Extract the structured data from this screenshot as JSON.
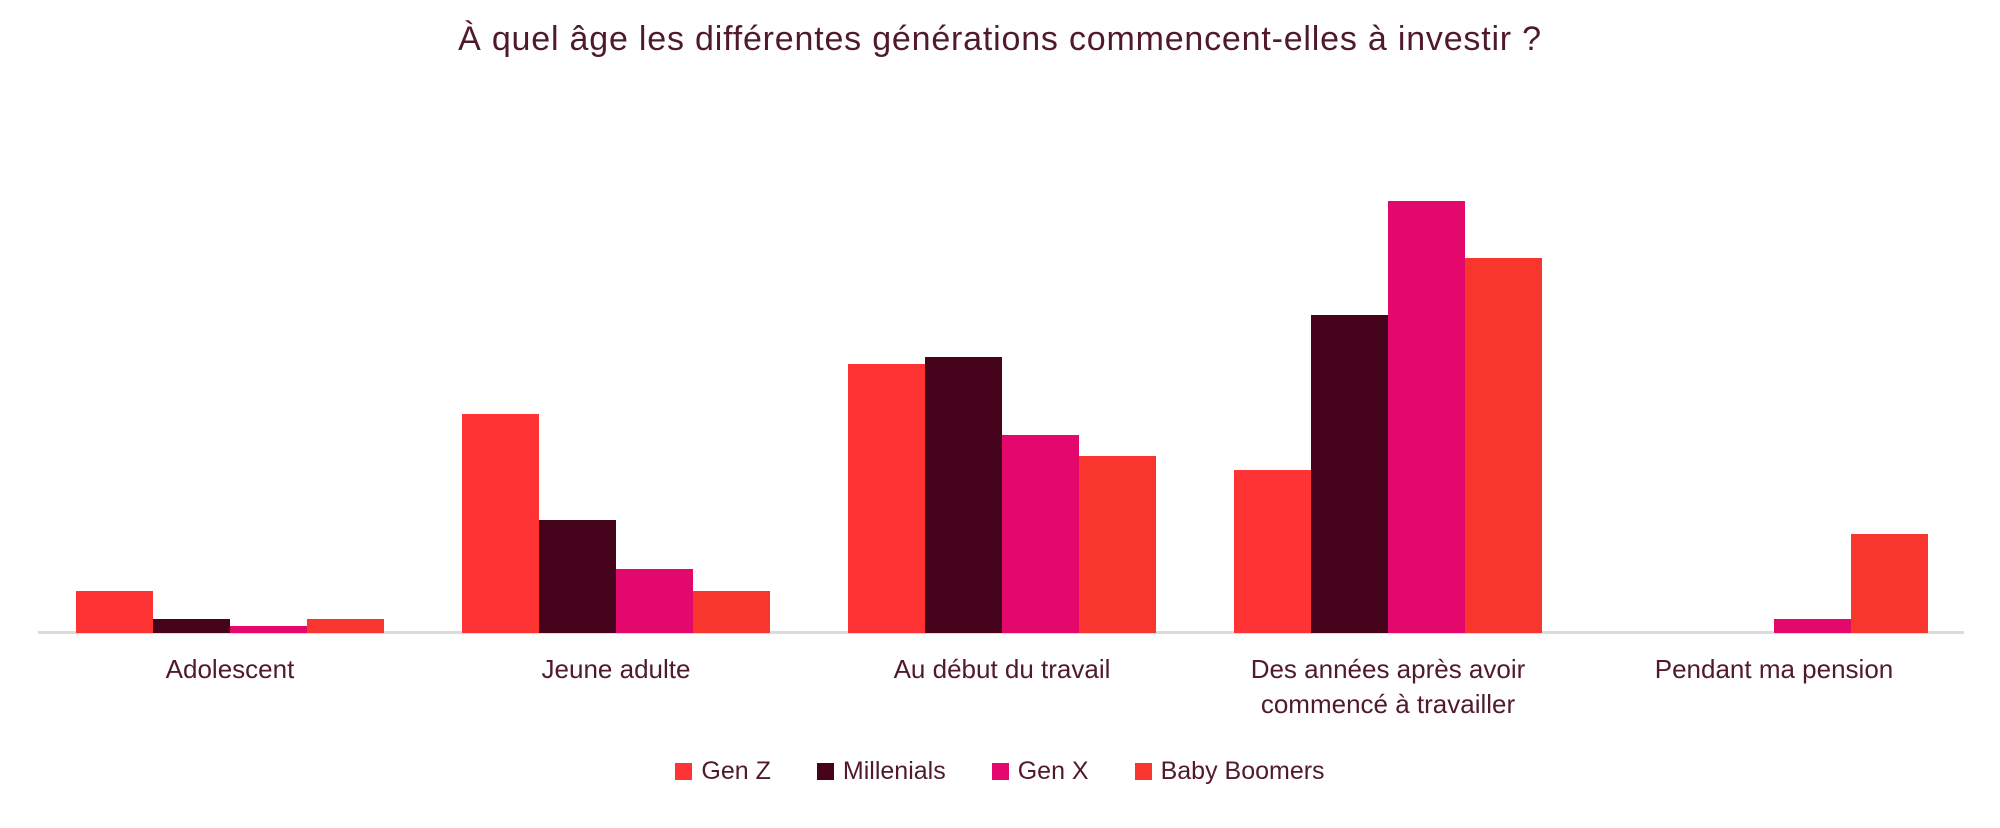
{
  "chart_data": {
    "type": "bar",
    "grouped": true,
    "title": "À quel âge les différentes générations commencent-elles à investir ?",
    "categories": [
      "Adolescent",
      "Jeune adulte",
      "Au début du travail",
      "Des années après avoir commencé à travailler",
      "Pendant ma pension"
    ],
    "series": [
      {
        "name": "Gen Z",
        "color": "#FF3333",
        "values": [
          6,
          31,
          38,
          23,
          0
        ]
      },
      {
        "name": "Millenials",
        "color": "#45041C",
        "values": [
          2,
          16,
          39,
          45,
          0
        ]
      },
      {
        "name": "Gen X",
        "color": "#E5086C",
        "values": [
          1,
          9,
          28,
          61,
          2
        ]
      },
      {
        "name": "Baby Boomers",
        "color": "#F8362E",
        "values": [
          2,
          6,
          25,
          53,
          14
        ]
      }
    ],
    "xlabel": "",
    "ylabel": "",
    "ylim": [
      0,
      65
    ],
    "grid": false,
    "legend_position": "bottom",
    "colors": {
      "text": "#511A2C",
      "axis_line": "#DBDBDB",
      "background": "#FFFFFF"
    }
  }
}
